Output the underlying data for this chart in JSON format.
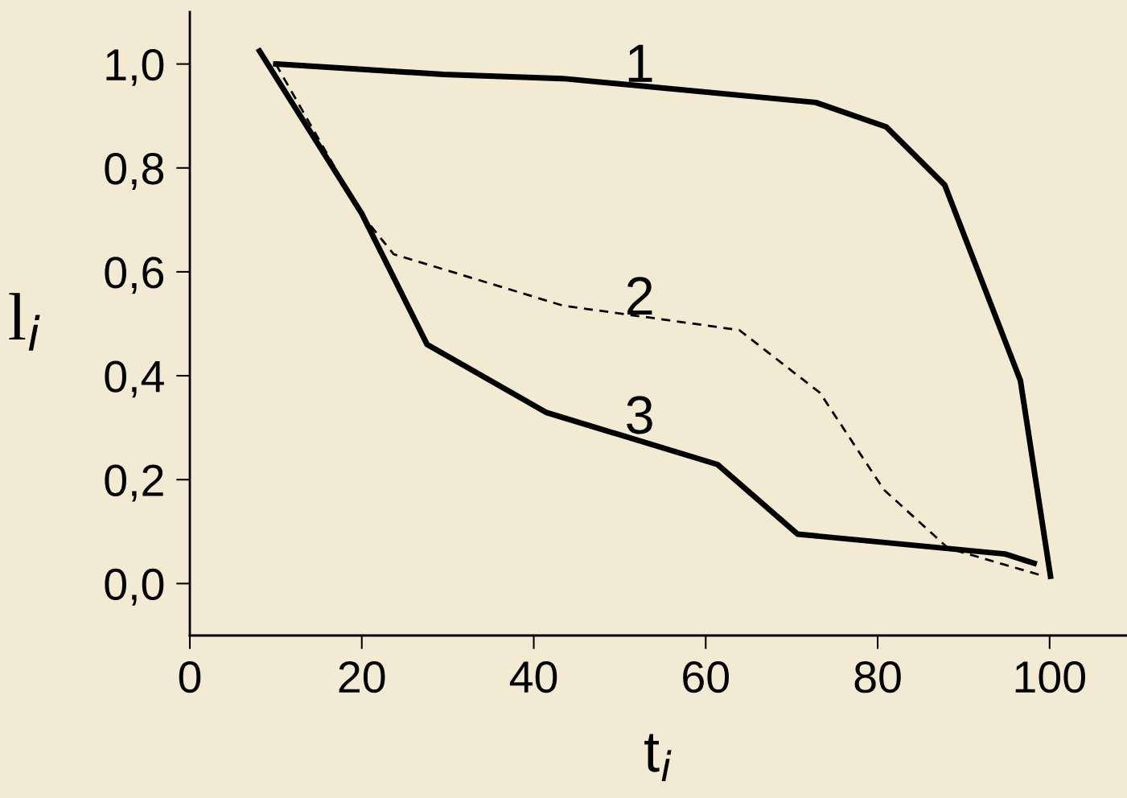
{
  "chart_data": {
    "type": "line",
    "xlabel": "t$_{i}$",
    "ylabel": "l$_{i}$",
    "xlim": [
      0,
      109
    ],
    "ylim": [
      -0.1,
      1.1
    ],
    "xticks": [
      0,
      20,
      40,
      60,
      80,
      100
    ],
    "yticks": [
      {
        "value": 0,
        "label": "0,0"
      },
      {
        "value": 0.2,
        "label": "0,2"
      },
      {
        "value": 0.4,
        "label": "0,4"
      },
      {
        "value": 0.6,
        "label": "0,6"
      },
      {
        "value": 0.8,
        "label": "0,8"
      },
      {
        "value": 1.0,
        "label": "1,0"
      }
    ],
    "grid": false,
    "legend": false,
    "marker": "none",
    "series": [
      {
        "name": "1",
        "color": "#000000",
        "line_style": "solid",
        "x": [
          10,
          29.5,
          43.4,
          72.8,
          81,
          87.8,
          96.6,
          100.1
        ],
        "values": [
          1.0,
          0.98,
          0.972,
          0.926,
          0.879,
          0.767,
          0.391,
          0.014
        ]
      },
      {
        "name": "2",
        "color": "#000000",
        "line_style": "dashed",
        "x": [
          10,
          20,
          23.7,
          43.4,
          63.9,
          73.3,
          80.7,
          88.2,
          99.4
        ],
        "values": [
          1.0,
          0.71,
          0.634,
          0.535,
          0.488,
          0.367,
          0.181,
          0.068,
          0.014
        ]
      },
      {
        "name": "3",
        "color": "#000000",
        "line_style": "solid",
        "x": [
          8.1,
          20,
          27.6,
          41.5,
          61.4,
          70.7,
          94.8,
          98.2
        ],
        "values": [
          1.025,
          0.712,
          0.46,
          0.329,
          0.229,
          0.095,
          0.057,
          0.039
        ]
      }
    ]
  }
}
